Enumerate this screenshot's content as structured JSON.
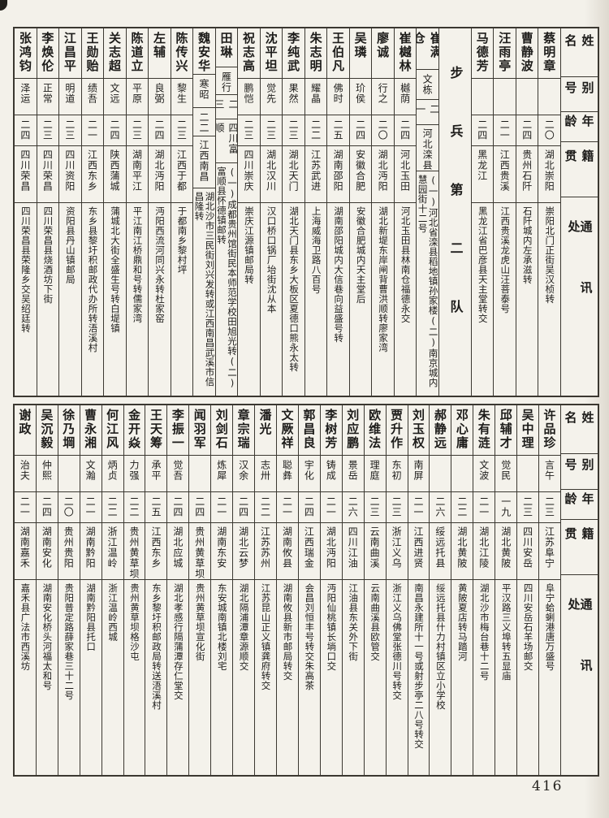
{
  "page": {
    "number": "416"
  },
  "headers": {
    "name": "姓名",
    "alias": "别号",
    "age": "年龄",
    "native": "籍贯",
    "contact": "通讯处"
  },
  "tables": [
    {
      "columns": [
        {
          "name": "蔡明章",
          "alias": "",
          "age": "二〇",
          "native": "湖北崇阳",
          "address": "崇阳北门正街吴汉桢转"
        },
        {
          "name": "曹静波",
          "alias": "",
          "age": "二四",
          "native": "贵州石阡",
          "address": "石阡城内左承滋转"
        },
        {
          "name": "汪雨亭",
          "alias": "",
          "age": "二一",
          "native": "江西贵溪",
          "address": "江西贵溪龙虎山汪菩泰号"
        },
        {
          "name": "马德芳",
          "alias": "",
          "age": "二四",
          "native": "黑龙江",
          "address": "黑龙江省巴彦县天主堂转交"
        },
        {
          "section": "步兵第二队"
        },
        {
          "name": "崔满仓",
          "alias": "文栋",
          "age": "二一",
          "native": "河北滦县",
          "address": "(一)河北省滦县稻地镇孙家楼(二)南京城内慧园街十二号"
        },
        {
          "name": "崔樾林",
          "alias": "樾荫",
          "age": "二四",
          "native": "河北玉田",
          "address": "河北玉田县林南仓福德永交"
        },
        {
          "name": "廖诚",
          "alias": "行之",
          "age": "二〇",
          "native": "湖北沔阳",
          "address": "湖北新堤东岸闸背曹洪顺转廖家湾"
        },
        {
          "name": "吴璘",
          "alias": "玠侯",
          "age": "二四",
          "native": "安徽合肥",
          "address": "安徽合肥城内天主堂后"
        },
        {
          "name": "王伯凡",
          "alias": "佛时",
          "age": "二五",
          "native": "湖南邵阳",
          "address": "湖南邵阳城内大信巷向益盛号转"
        },
        {
          "name": "朱志明",
          "alias": "耀晶",
          "age": "二二",
          "native": "江苏武进",
          "address": "上海威海卫路八百号"
        },
        {
          "name": "李纯武",
          "alias": "果然",
          "age": "二三",
          "native": "湖北天门",
          "address": "湖北天门县东乡大板区夏德口熊永太转"
        },
        {
          "name": "沈平坦",
          "alias": "觉先",
          "age": "二三",
          "native": "湖北汉川",
          "address": "汉口桥口锅厂坮街沈从本"
        },
        {
          "name": "祝志高",
          "alias": "鹏恺",
          "age": "二三",
          "native": "四川崇庆",
          "address": "崇庆江源镇邮局转"
        },
        {
          "name": "田琳",
          "alias": "雁行",
          "age": "二三",
          "native": "四川富顺",
          "address": "(一)成都贵州馆街民本师范学校田旭光转(二)富顺县怀德镇邮转"
        },
        {
          "name": "魏安华",
          "alias": "寒昭",
          "age": "二二",
          "native": "江西南昌",
          "address": "湖北沙市三民街刘兴发转或江西南昌武溪市信昌隆转"
        },
        {
          "name": "陈传兴",
          "alias": "黎生",
          "age": "二三",
          "native": "江西于都",
          "address": "于都南乡黎村坪"
        },
        {
          "name": "左辅",
          "alias": "良弼",
          "age": "二四",
          "native": "湖北沔阳",
          "address": "沔阳西流河同兴永转杜家窑"
        },
        {
          "name": "陈道立",
          "alias": "平原",
          "age": "二三",
          "native": "湖南平江",
          "address": "平江南江桥鼎和号转儒家湾"
        },
        {
          "name": "关志超",
          "alias": "文远",
          "age": "二四",
          "native": "陕西蒲城",
          "address": "蒲城北大街全盛生号转白堤镇"
        },
        {
          "name": "王勋贻",
          "alias": "绩吾",
          "age": "二一",
          "native": "江西东乡",
          "address": "东乡县黎圩积邮政代办所转浯溪村"
        },
        {
          "name": "江昌平",
          "alias": "明道",
          "age": "二三",
          "native": "四川资阳",
          "address": "资阳县丹山镇邮局"
        },
        {
          "name": "李焕伦",
          "alias": "正常",
          "age": "二三",
          "native": "四川荣昌",
          "address": "四川荣昌县烧酒坊下街"
        },
        {
          "name": "张鸿钧",
          "alias": "泽运",
          "age": "二四",
          "native": "四川荣昌",
          "address": "四川荣昌县荣隆乡交吴绍廷转"
        }
      ]
    },
    {
      "columns": [
        {
          "name": "许品珍",
          "alias": "言午",
          "age": "二三",
          "native": "江苏阜宁",
          "address": "阜宁蛤蜊港唐万盛号"
        },
        {
          "name": "吴中理",
          "alias": "",
          "age": "二三",
          "native": "四川安岳",
          "address": "四川安岳石羊场邮交"
        },
        {
          "name": "邱辅才",
          "alias": "觉民",
          "age": "一九",
          "native": "湖北黄陂",
          "address": "平汉路三义埠转五显庙"
        },
        {
          "name": "朱有涟",
          "alias": "文波",
          "age": "二一",
          "native": "湖北江陵",
          "address": "湖北沙市梅台巷十二号"
        },
        {
          "name": "邓心庸",
          "alias": "",
          "age": "二二",
          "native": "湖北黄陂",
          "address": "黄陂夏店转马踏河"
        },
        {
          "name": "郝静远",
          "alias": "",
          "age": "二六",
          "native": "绥远托县",
          "address": "绥远托县什力村镇区立小学校"
        },
        {
          "name": "刘玉权",
          "alias": "南屏",
          "age": "二一",
          "native": "江西进贤",
          "address": "南昌永建所十一号或射步亭二八号转交"
        },
        {
          "name": "贾升作",
          "alias": "东初",
          "age": "二三",
          "native": "浙江义乌",
          "address": "浙江义乌佛堂张德川号转交"
        },
        {
          "name": "欧维法",
          "alias": "理庭",
          "age": "二三",
          "native": "云南曲溪",
          "address": "云南曲溪县欧管交"
        },
        {
          "name": "刘应鹏",
          "alias": "景岳",
          "age": "二六",
          "native": "四川江油",
          "address": "江油县东关外下街"
        },
        {
          "name": "李树芳",
          "alias": "铸成",
          "age": "二一",
          "native": "湖北沔阳",
          "address": "沔阳仙桃镇长埫口交"
        },
        {
          "name": "郭昌良",
          "alias": "宇化",
          "age": "二四",
          "native": "江西瑞金",
          "address": "会昌刘恒丰号转交朱高茶"
        },
        {
          "name": "文厥祥",
          "alias": "聪彝",
          "age": "二一",
          "native": "湖南攸县",
          "address": "湖南攸县新市邮局转交"
        },
        {
          "name": "潘光",
          "alias": "志卅",
          "age": "二二",
          "native": "江苏苏州",
          "address": "江苏昆山正义镇龚府转交"
        },
        {
          "name": "章宗瑞",
          "alias": "汉余",
          "age": "二四",
          "native": "湖北云梦",
          "address": "湖北隔浦潭章源顺交"
        },
        {
          "name": "刘剑石",
          "alias": "炼犀",
          "age": "二一",
          "native": "湖南东安",
          "address": "东安城南镇北楼刘宅"
        },
        {
          "name": "闻羽军",
          "alias": "",
          "age": "二四",
          "native": "贵州黄草坝",
          "address": "贵州黄草坝宣化街"
        },
        {
          "name": "李振一",
          "alias": "觉吾",
          "age": "二四",
          "native": "湖北应城",
          "address": "湖北孝感行隔蒲潭存仁堂交"
        },
        {
          "name": "王天筹",
          "alias": "承平",
          "age": "二五",
          "native": "江西东乡",
          "address": "东乡黎圩积邮政局转送浯溪村"
        },
        {
          "name": "金开焱",
          "alias": "力强",
          "age": "二二",
          "native": "贵州黄草坝",
          "address": "贵州黄草坝格沙屯"
        },
        {
          "name": "何江风",
          "alias": "炳贞",
          "age": "二二",
          "native": "浙江温岭",
          "address": "浙江温岭西城"
        },
        {
          "name": "曹永湘",
          "alias": "文瀚",
          "age": "二一",
          "native": "湖南黔阳",
          "address": "湖南黔阳县托口"
        },
        {
          "name": "徐乃堈",
          "alias": "",
          "age": "二〇",
          "native": "贵州贵阳",
          "address": "贵阳普定路薛家巷三十二号"
        },
        {
          "name": "吴沉毅",
          "alias": "仲熙",
          "age": "二四",
          "native": "湖南安化",
          "address": "湖南安化桥头河福太和号"
        },
        {
          "name": "谢政",
          "alias": "治夫",
          "age": "二一",
          "native": "湖南嘉禾",
          "address": "嘉禾县广法市西溪坊"
        }
      ]
    }
  ]
}
